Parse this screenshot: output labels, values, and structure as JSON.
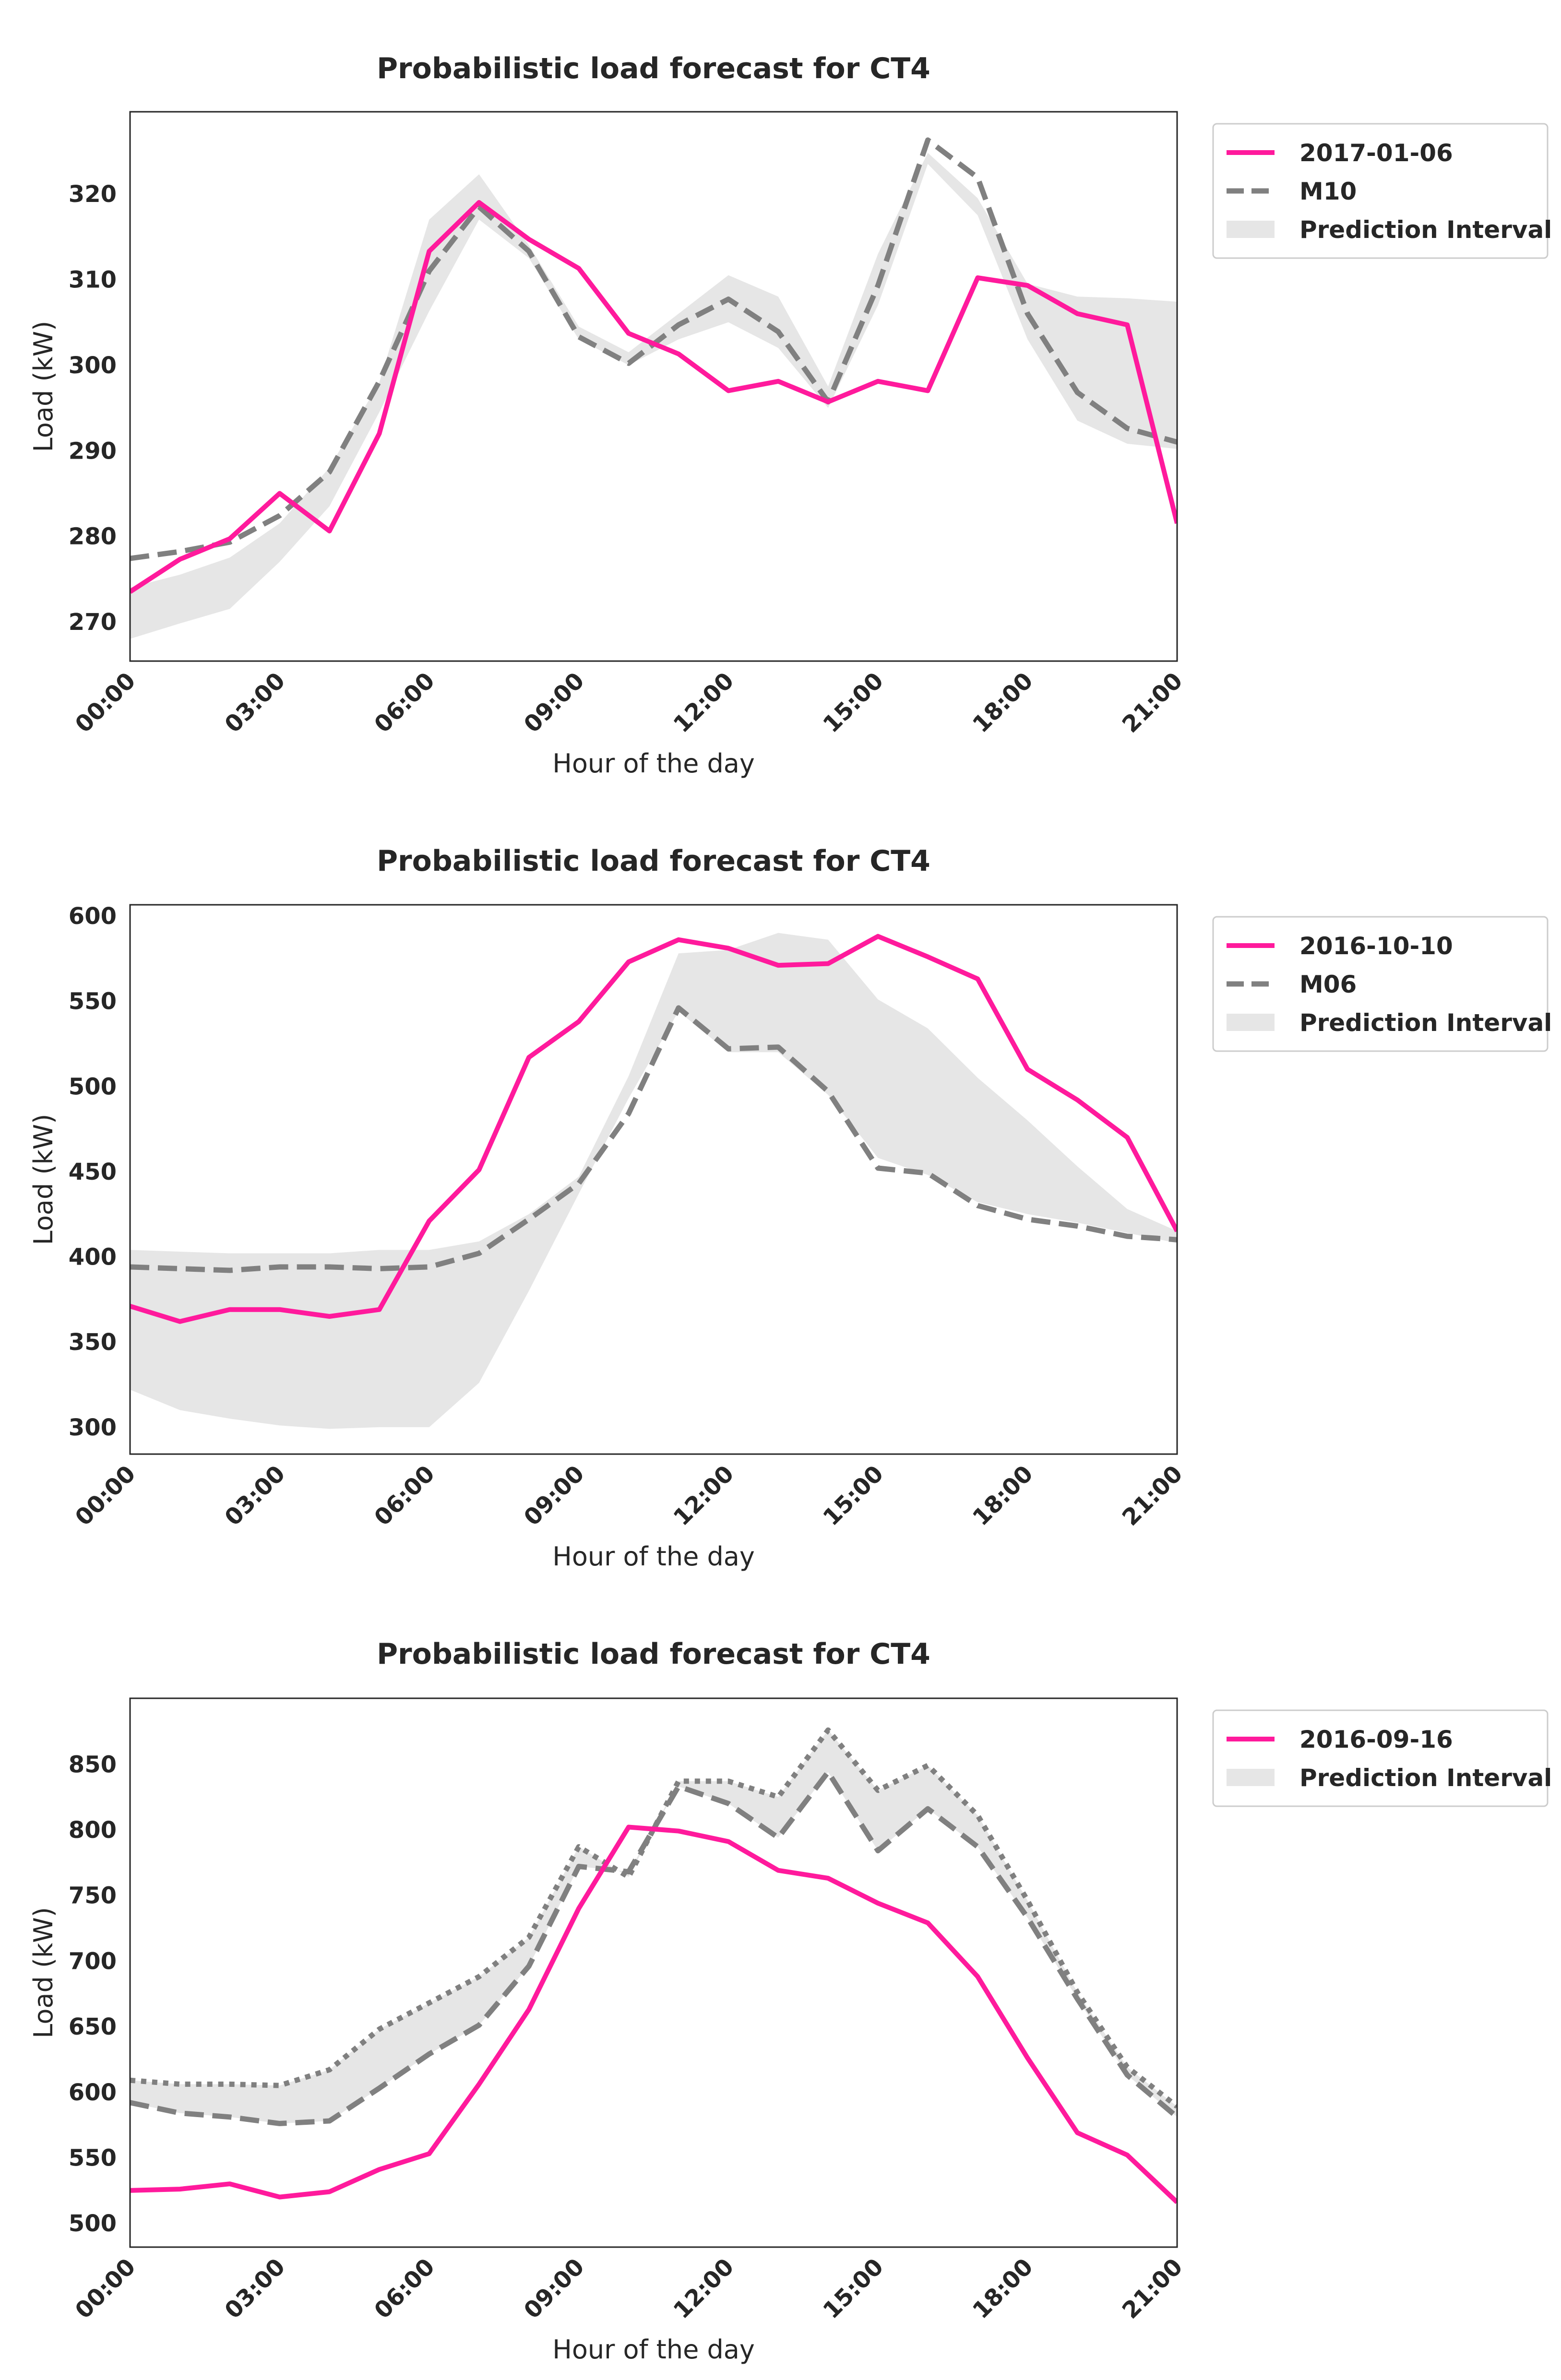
{
  "colors": {
    "actual": "#ff1a9c",
    "model": "#808080",
    "interval": "#e6e6e6",
    "axes": "#262626",
    "legend_border": "#cccccc"
  },
  "chart_data": [
    {
      "type": "line",
      "title": "Probabilistic load forecast for CT4",
      "xlabel": "Hour of the day",
      "ylabel": "Load (kW)",
      "x": [
        0,
        1,
        2,
        3,
        4,
        5,
        6,
        7,
        8,
        9,
        10,
        11,
        12,
        13,
        14,
        15,
        16,
        17,
        18,
        19,
        20,
        21
      ],
      "xticks": [
        0,
        3,
        6,
        9,
        12,
        15,
        18,
        21
      ],
      "xtick_labels": [
        "00:00",
        "03:00",
        "06:00",
        "09:00",
        "12:00",
        "15:00",
        "18:00",
        "21:00"
      ],
      "xlim": [
        0,
        21
      ],
      "ylim": [
        265.4,
        329.6
      ],
      "yticks": [
        270,
        280,
        290,
        300,
        310,
        320
      ],
      "series": [
        {
          "name": "2017-01-06",
          "style": "solid",
          "values": [
            273.5,
            277.3,
            279.7,
            285.0,
            280.6,
            292.0,
            313.3,
            319.0,
            314.7,
            311.3,
            303.7,
            301.3,
            297.0,
            298.1,
            295.7,
            298.1,
            297.0,
            310.2,
            309.3,
            306.0,
            304.7,
            281.5
          ]
        },
        {
          "name": "M10",
          "style": "dashed",
          "values": [
            277.4,
            278.2,
            279.3,
            282.4,
            287.5,
            298.1,
            311.0,
            318.5,
            313.3,
            303.3,
            300.2,
            304.7,
            307.7,
            303.9,
            295.7,
            309.3,
            326.3,
            321.9,
            306.0,
            296.8,
            292.6,
            291.0
          ]
        },
        {
          "name": "interval_upper",
          "style": "none",
          "values": [
            274.0,
            275.5,
            277.5,
            281.5,
            288.0,
            298.0,
            317.0,
            322.3,
            314.0,
            304.5,
            301.5,
            306.0,
            310.5,
            308.0,
            297.5,
            313.0,
            324.8,
            319.5,
            309.5,
            308.0,
            307.8,
            307.4
          ]
        },
        {
          "name": "interval_lower",
          "style": "none",
          "values": [
            268.0,
            269.8,
            271.5,
            277.0,
            283.5,
            294.5,
            306.3,
            317.0,
            312.5,
            303.0,
            300.0,
            303.0,
            305.0,
            302.0,
            295.0,
            307.0,
            323.5,
            317.5,
            303.0,
            293.5,
            290.8,
            290.2
          ]
        }
      ],
      "legend": [
        {
          "label": "2017-01-06",
          "kind": "solid"
        },
        {
          "label": "M10",
          "kind": "dashed"
        },
        {
          "label": "Prediction Interval",
          "kind": "patch"
        }
      ]
    },
    {
      "type": "line",
      "title": "Probabilistic load forecast for CT4",
      "xlabel": "Hour of the day",
      "ylabel": "Load (kW)",
      "x": [
        0,
        1,
        2,
        3,
        4,
        5,
        6,
        7,
        8,
        9,
        10,
        11,
        12,
        13,
        14,
        15,
        16,
        17,
        18,
        19,
        20,
        21
      ],
      "xticks": [
        0,
        3,
        6,
        9,
        12,
        15,
        18,
        21
      ],
      "xtick_labels": [
        "00:00",
        "03:00",
        "06:00",
        "09:00",
        "12:00",
        "15:00",
        "18:00",
        "21:00"
      ],
      "xlim": [
        0,
        21
      ],
      "ylim": [
        284.2,
        606.5
      ],
      "yticks": [
        300,
        350,
        400,
        450,
        500,
        550,
        600
      ],
      "series": [
        {
          "name": "2016-10-10",
          "style": "solid",
          "values": [
            371,
            362,
            369,
            369,
            365,
            369,
            421,
            451,
            517,
            538,
            573,
            586,
            581,
            571,
            572,
            588,
            576,
            563,
            510,
            492,
            470,
            415
          ]
        },
        {
          "name": "M06",
          "style": "dashed",
          "values": [
            394,
            393,
            392,
            394,
            394,
            393,
            394,
            402,
            422,
            443,
            484,
            546,
            522,
            523,
            497,
            452,
            449,
            430,
            422,
            418,
            412,
            410
          ]
        },
        {
          "name": "interval_upper",
          "style": "none",
          "values": [
            404,
            403,
            402,
            402,
            402,
            404,
            404,
            409,
            425,
            447,
            506,
            578,
            580,
            590,
            586,
            551,
            534,
            505,
            480,
            453,
            428,
            415
          ]
        },
        {
          "name": "interval_lower",
          "style": "none",
          "values": [
            322,
            310,
            305,
            301,
            299,
            300,
            300,
            326,
            380,
            437,
            493,
            544,
            520,
            520,
            495,
            458,
            448,
            432,
            425,
            420,
            414,
            408
          ]
        }
      ],
      "legend": [
        {
          "label": "2016-10-10",
          "kind": "solid"
        },
        {
          "label": "M06",
          "kind": "dashed"
        },
        {
          "label": "Prediction Interval",
          "kind": "patch"
        }
      ]
    },
    {
      "type": "line",
      "title": "Probabilistic load forecast for CT4",
      "xlabel": "Hour of the day",
      "ylabel": "Load (kW)",
      "x": [
        0,
        1,
        2,
        3,
        4,
        5,
        6,
        7,
        8,
        9,
        10,
        11,
        12,
        13,
        14,
        15,
        16,
        17,
        18,
        19,
        20,
        21
      ],
      "xticks": [
        0,
        3,
        6,
        9,
        12,
        15,
        18,
        21
      ],
      "xtick_labels": [
        "00:00",
        "03:00",
        "06:00",
        "09:00",
        "12:00",
        "15:00",
        "18:00",
        "21:00"
      ],
      "xlim": [
        0,
        21
      ],
      "ylim": [
        481.8,
        900.2
      ],
      "yticks": [
        500,
        550,
        600,
        650,
        700,
        750,
        800,
        850
      ],
      "series": [
        {
          "name": "2016-09-16",
          "style": "solid",
          "values": [
            525,
            526,
            530,
            520,
            524,
            541,
            553,
            606,
            663,
            740,
            802,
            799,
            791,
            769,
            763,
            744,
            729,
            688,
            626,
            569,
            552,
            516
          ]
        },
        {
          "name": "lower",
          "style": "dashed",
          "values": [
            592,
            584,
            581,
            576,
            578,
            603,
            629,
            651,
            696,
            772,
            768,
            833,
            820,
            794,
            844,
            784,
            816,
            787,
            733,
            671,
            613,
            581
          ]
        },
        {
          "name": "upper",
          "style": "dotted",
          "values": [
            609,
            606,
            606,
            605,
            617,
            648,
            668,
            688,
            718,
            787,
            764,
            837,
            837,
            825,
            876,
            830,
            849,
            811,
            746,
            676,
            619,
            589
          ]
        }
      ],
      "legend": [
        {
          "label": "2016-09-16",
          "kind": "solid"
        },
        {
          "label": "Prediction Interval",
          "kind": "patch"
        }
      ]
    }
  ]
}
